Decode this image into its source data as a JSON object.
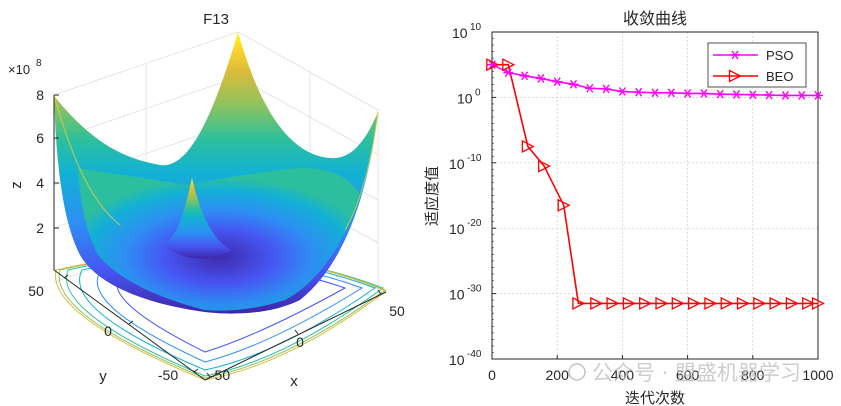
{
  "chart_data": [
    {
      "type": "surface3d",
      "title": "F13",
      "xlabel": "x",
      "ylabel": "y",
      "zlabel": "z",
      "x_ticks": [
        "-50",
        "0",
        "50"
      ],
      "y_ticks": [
        "-50",
        "0",
        "50"
      ],
      "z_ticks": [
        "2",
        "4",
        "6",
        "8"
      ],
      "z_multiplier": "×10",
      "z_exponent": "8",
      "xlim": [
        -50,
        50
      ],
      "ylim": [
        -50,
        50
      ],
      "zlim": [
        0,
        800000000
      ],
      "colormap": [
        "#3e26a8",
        "#4755f3",
        "#2d8ff4",
        "#12b1d4",
        "#2dc09b",
        "#8dc35e",
        "#dcbb3a",
        "#fcd42c",
        "#f9fb15"
      ]
    },
    {
      "type": "line",
      "title": "收敛曲线",
      "xlabel": "迭代次数",
      "ylabel": "适应度值",
      "yscale": "log",
      "xlim": [
        0,
        1000
      ],
      "ylim_exp": [
        -40,
        10
      ],
      "x_ticks": [
        "0",
        "200",
        "400",
        "600",
        "800",
        "1000"
      ],
      "y_tick_base": "10",
      "y_tick_exponents": [
        "-40",
        "-30",
        "-20",
        "-10",
        "0",
        "10"
      ],
      "legend_position": "top-right",
      "series": [
        {
          "name": "PSO",
          "color": "#ff00ff",
          "marker": "asterisk",
          "x": [
            1,
            50,
            100,
            150,
            200,
            250,
            300,
            350,
            400,
            450,
            500,
            550,
            600,
            650,
            700,
            750,
            800,
            850,
            900,
            950,
            1000
          ],
          "log10_y": [
            5.0,
            3.8,
            3.3,
            2.9,
            2.4,
            2.0,
            1.4,
            1.3,
            0.9,
            0.8,
            0.7,
            0.7,
            0.6,
            0.6,
            0.5,
            0.45,
            0.4,
            0.35,
            0.3,
            0.3,
            0.3
          ]
        },
        {
          "name": "BEO",
          "color": "#ff0000",
          "marker": "triangle-right",
          "x": [
            1,
            50,
            110,
            160,
            220,
            265,
            320,
            370,
            420,
            470,
            520,
            570,
            620,
            670,
            720,
            770,
            820,
            870,
            920,
            970,
            1000
          ],
          "log10_y": [
            5.0,
            5.0,
            -7.5,
            -10.5,
            -16.5,
            -31.5,
            -31.5,
            -31.5,
            -31.5,
            -31.5,
            -31.5,
            -31.5,
            -31.5,
            -31.5,
            -31.5,
            -31.5,
            -31.5,
            -31.5,
            -31.5,
            -31.5,
            -31.5
          ]
        }
      ]
    }
  ],
  "watermark": "公众号 · 盟盛机器学习"
}
